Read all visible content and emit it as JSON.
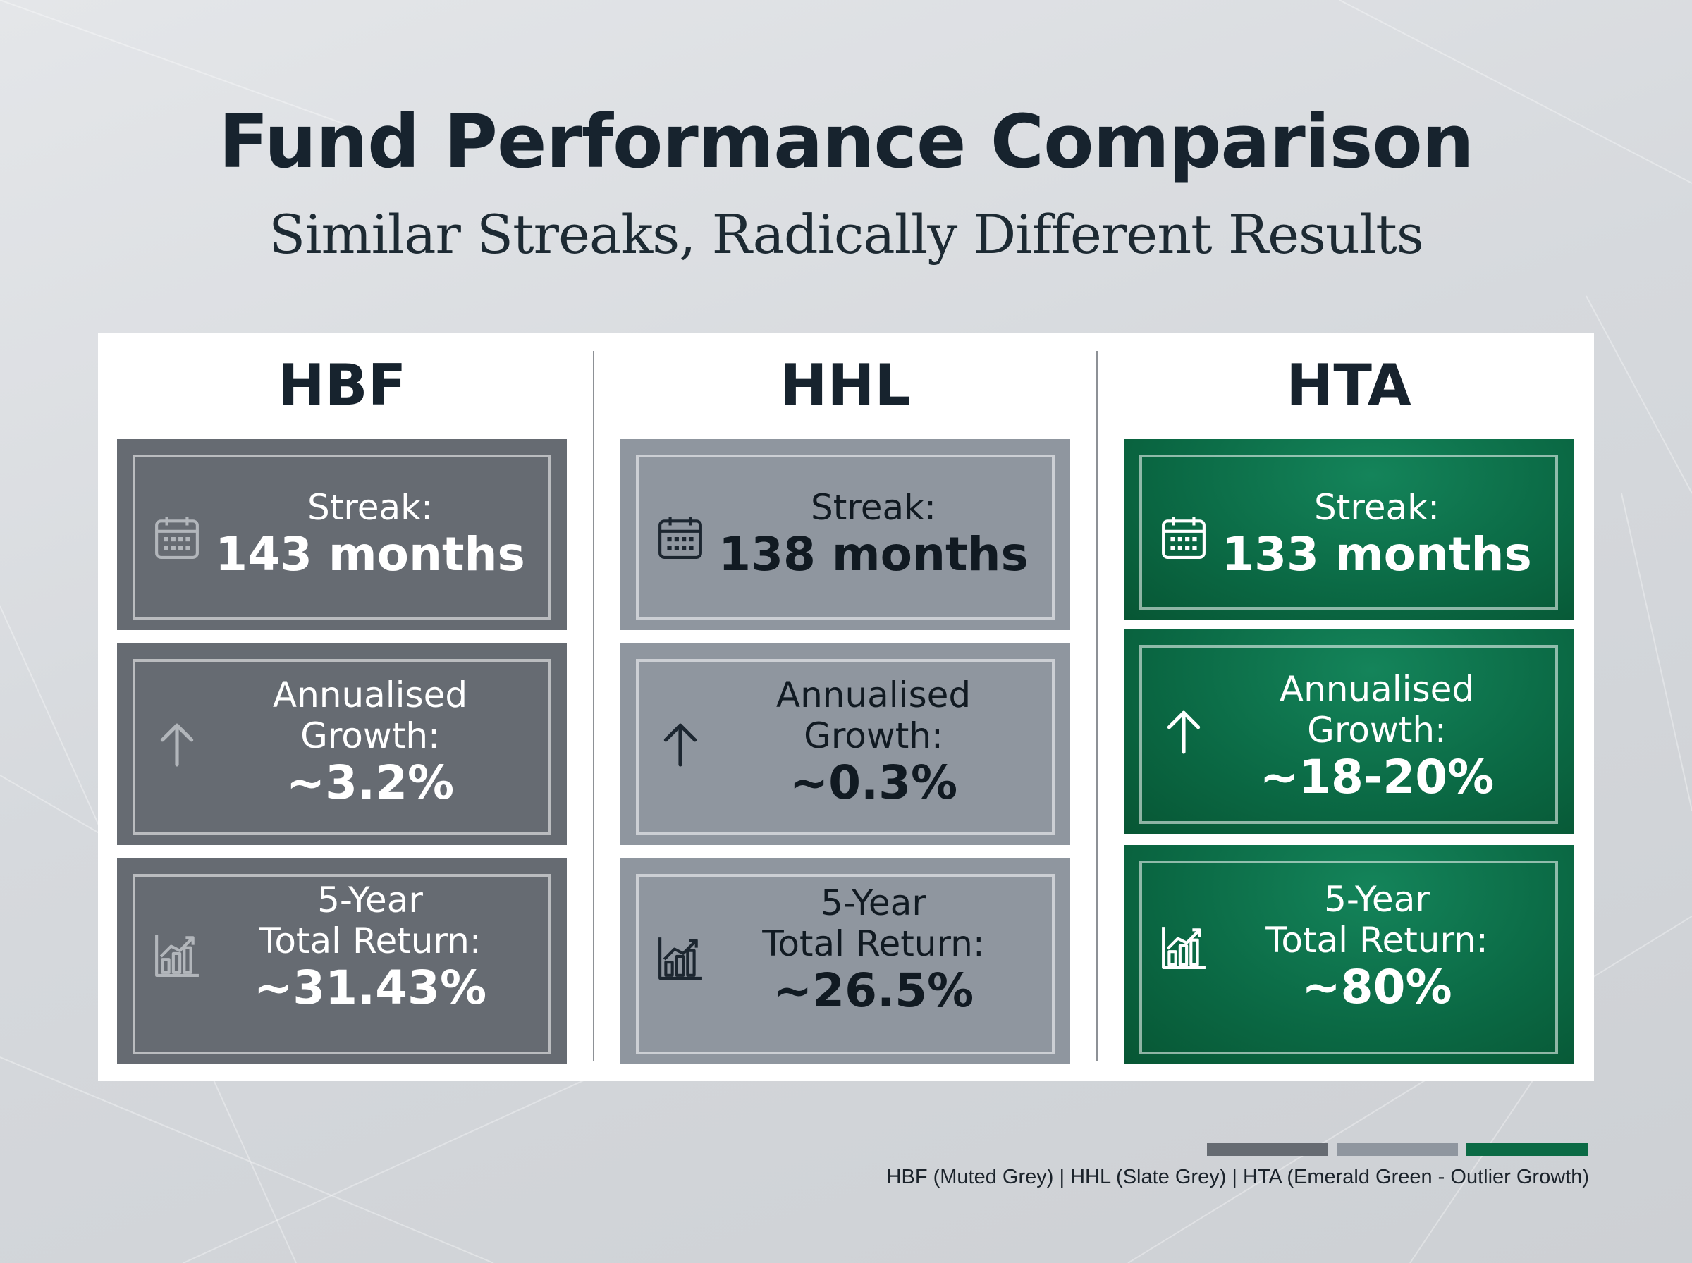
{
  "header": {
    "title": "Fund Performance Comparison",
    "subtitle": "Similar Streaks, Radically Different Results"
  },
  "funds": [
    {
      "name": "HBF",
      "color": "#666b72",
      "streak_label": "Streak:",
      "streak_value": "143 months",
      "growth_label_1": "Annualised",
      "growth_label_2": "Growth:",
      "growth_value": "~3.2%",
      "return_label_1": "5-Year",
      "return_label_2": "Total Return:",
      "return_value": "~31.43%"
    },
    {
      "name": "HHL",
      "color": "#8f969f",
      "streak_label": "Streak:",
      "streak_value": "138 months",
      "growth_label_1": "Annualised",
      "growth_label_2": "Growth:",
      "growth_value": "~0.3%",
      "return_label_1": "5-Year",
      "return_label_2": "Total Return:",
      "return_value": "~26.5%"
    },
    {
      "name": "HTA",
      "color": "#0b6a45",
      "streak_label": "Streak:",
      "streak_value": "133 months",
      "growth_label_1": "Annualised",
      "growth_label_2": "Growth:",
      "growth_value": "~18-20%",
      "return_label_1": "5-Year",
      "return_label_2": "Total Return:",
      "return_value": "~80%"
    }
  ],
  "icons": {
    "streak": "calendar-icon",
    "growth": "arrow-up-icon",
    "return": "bar-chart-icon"
  },
  "legend": {
    "text": "HBF (Muted Grey) | HHL (Slate Grey) | HTA (Emerald Green - Outlier Growth)",
    "colors": [
      "#666b72",
      "#8f969f",
      "#0b6a45"
    ]
  }
}
